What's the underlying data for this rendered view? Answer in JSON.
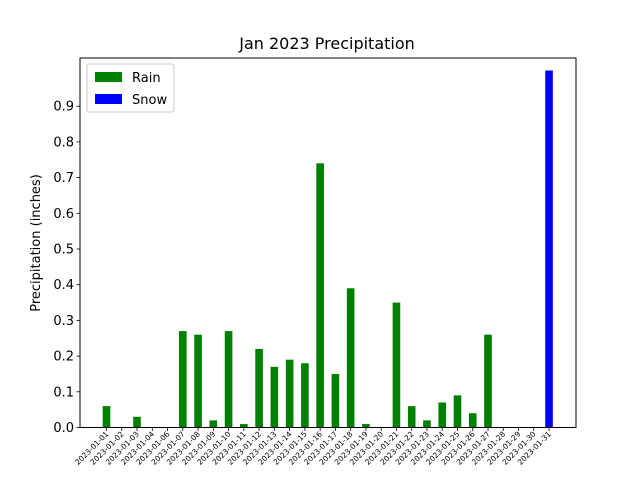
{
  "chart_data": {
    "type": "bar",
    "title": "Jan 2023 Precipitation",
    "xlabel": "",
    "ylabel": "Precipitation (inches)",
    "ylim": [
      0,
      1.0
    ],
    "yticks": [
      0.0,
      0.1,
      0.2,
      0.3,
      0.4,
      0.5,
      0.6,
      0.7,
      0.8,
      0.9
    ],
    "ytick_labels": [
      "0.0",
      "0.1",
      "0.2",
      "0.3",
      "0.4",
      "0.5",
      "0.6",
      "0.7",
      "0.8",
      "0.9"
    ],
    "grid": false,
    "legend": {
      "placement": "top-left",
      "entries": [
        {
          "name": "Rain",
          "color": "#008000"
        },
        {
          "name": "Snow",
          "color": "#0000ff"
        }
      ]
    },
    "categories": [
      "2023-01-01",
      "2023-01-02",
      "2023-01-03",
      "2023-01-04",
      "2023-01-06",
      "2023-01-07",
      "2023-01-08",
      "2023-01-09",
      "2023-01-10",
      "2023-01-11",
      "2023-01-12",
      "2023-01-13",
      "2023-01-14",
      "2023-01-15",
      "2023-01-16",
      "2023-01-17",
      "2023-01-18",
      "2023-01-19",
      "2023-01-20",
      "2023-01-21",
      "2023-01-22",
      "2023-01-23",
      "2023-01-24",
      "2023-01-25",
      "2023-01-26",
      "2023-01-27",
      "2023-01-28",
      "2023-01-29",
      "2023-01-30",
      "2023-01-31"
    ],
    "series": [
      {
        "name": "Rain",
        "color": "#008000",
        "values": [
          0.06,
          0,
          0.03,
          0,
          0,
          0.27,
          0.26,
          0.02,
          0.27,
          0.01,
          0.22,
          0.17,
          0.19,
          0.18,
          0.74,
          0.15,
          0.39,
          0.01,
          0,
          0.35,
          0.06,
          0.02,
          0.07,
          0.09,
          0.04,
          0.26,
          0,
          0,
          0,
          0
        ]
      },
      {
        "name": "Snow",
        "color": "#0000ff",
        "values": [
          0,
          0,
          0,
          0,
          0,
          0,
          0,
          0,
          0,
          0,
          0,
          0,
          0,
          0,
          0,
          0,
          0,
          0,
          0,
          0,
          0,
          0,
          0,
          0,
          0,
          0,
          0,
          0,
          0,
          1.0
        ]
      }
    ]
  }
}
